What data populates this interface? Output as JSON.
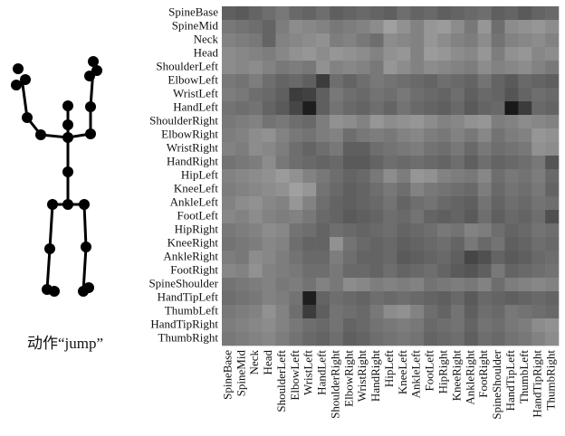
{
  "chart_data": {
    "type": "heatmap",
    "caption": "动作“jump”",
    "row_labels": [
      "SpineBase",
      "SpineMid",
      "Neck",
      "Head",
      "ShoulderLeft",
      "ElbowLeft",
      "WristLeft",
      "HandLeft",
      "ShoulderRight",
      "ElbowRight",
      "WristRight",
      "HandRight",
      "HipLeft",
      "KneeLeft",
      "AnkleLeft",
      "FootLeft",
      "HipRight",
      "KneeRight",
      "AnkleRight",
      "FootRight",
      "SpineShoulder",
      "HandTipLeft",
      "ThumbLeft",
      "HandTipRight",
      "ThumbRight"
    ],
    "column_labels": [
      "SpineBase",
      "SpineMid",
      "Neck",
      "Head",
      "ShoulderLeft",
      "ElbowLeft",
      "WristLeft",
      "HandLeft",
      "ShoulderRight",
      "ElbowRight",
      "WristRight",
      "HandRight",
      "HipLeft",
      "KneeLeft",
      "AnkleLeft",
      "FootLeft",
      "HipRight",
      "KneeRight",
      "AnkleRight",
      "FootRight",
      "SpineShoulder",
      "HandTipLeft",
      "ThumbLeft",
      "HandTipRight",
      "ThumbRight"
    ],
    "values": [
      [
        95,
        90,
        100,
        110,
        120,
        105,
        100,
        110,
        95,
        100,
        105,
        100,
        95,
        110,
        100,
        105,
        95,
        100,
        105,
        110,
        95,
        100,
        90,
        100,
        105
      ],
      [
        120,
        115,
        110,
        100,
        125,
        140,
        135,
        130,
        120,
        125,
        130,
        140,
        160,
        145,
        130,
        150,
        155,
        140,
        120,
        150,
        110,
        140,
        145,
        150,
        140
      ],
      [
        130,
        125,
        120,
        100,
        130,
        135,
        140,
        145,
        125,
        130,
        120,
        110,
        140,
        135,
        130,
        150,
        140,
        130,
        125,
        140,
        115,
        130,
        135,
        140,
        130
      ],
      [
        140,
        135,
        130,
        125,
        135,
        145,
        150,
        140,
        150,
        145,
        140,
        130,
        145,
        150,
        130,
        155,
        150,
        140,
        135,
        150,
        125,
        145,
        150,
        135,
        140
      ],
      [
        140,
        135,
        140,
        130,
        120,
        125,
        120,
        145,
        130,
        135,
        130,
        120,
        150,
        140,
        130,
        140,
        135,
        130,
        125,
        140,
        130,
        135,
        140,
        130,
        120
      ],
      [
        120,
        115,
        125,
        110,
        100,
        105,
        95,
        60,
        110,
        100,
        110,
        120,
        115,
        110,
        105,
        100,
        110,
        105,
        100,
        115,
        100,
        90,
        105,
        100,
        95
      ],
      [
        125,
        120,
        110,
        105,
        95,
        60,
        65,
        95,
        120,
        110,
        105,
        115,
        110,
        120,
        110,
        105,
        100,
        110,
        95,
        105,
        100,
        85,
        100,
        110,
        105
      ],
      [
        115,
        110,
        115,
        100,
        90,
        70,
        30,
        95,
        115,
        105,
        100,
        110,
        100,
        115,
        105,
        100,
        95,
        105,
        90,
        100,
        105,
        25,
        60,
        105,
        100
      ],
      [
        120,
        125,
        130,
        115,
        120,
        110,
        105,
        125,
        145,
        140,
        130,
        150,
        140,
        145,
        150,
        140,
        130,
        135,
        145,
        150,
        125,
        130,
        140,
        135,
        130
      ],
      [
        125,
        130,
        140,
        145,
        130,
        120,
        115,
        125,
        130,
        110,
        120,
        125,
        120,
        130,
        135,
        125,
        120,
        130,
        120,
        135,
        115,
        125,
        130,
        150,
        145
      ],
      [
        130,
        125,
        140,
        135,
        125,
        110,
        100,
        110,
        120,
        95,
        95,
        110,
        115,
        120,
        125,
        115,
        110,
        120,
        105,
        120,
        110,
        115,
        120,
        145,
        140
      ],
      [
        115,
        120,
        125,
        140,
        120,
        110,
        105,
        100,
        105,
        90,
        90,
        100,
        110,
        105,
        110,
        105,
        100,
        110,
        95,
        110,
        100,
        105,
        110,
        120,
        85
      ],
      [
        130,
        135,
        140,
        145,
        155,
        145,
        130,
        120,
        110,
        100,
        105,
        120,
        140,
        125,
        150,
        145,
        130,
        125,
        120,
        135,
        110,
        120,
        115,
        125,
        105
      ],
      [
        125,
        130,
        135,
        140,
        145,
        160,
        150,
        115,
        105,
        95,
        100,
        110,
        120,
        110,
        130,
        120,
        115,
        110,
        105,
        125,
        105,
        115,
        110,
        120,
        100
      ],
      [
        130,
        140,
        145,
        135,
        130,
        150,
        130,
        110,
        100,
        95,
        100,
        105,
        115,
        100,
        110,
        115,
        105,
        100,
        95,
        115,
        100,
        110,
        105,
        115,
        110
      ],
      [
        135,
        130,
        140,
        130,
        125,
        130,
        120,
        105,
        100,
        90,
        95,
        100,
        110,
        105,
        115,
        100,
        95,
        100,
        90,
        110,
        95,
        105,
        100,
        110,
        80
      ],
      [
        120,
        125,
        130,
        140,
        135,
        115,
        110,
        100,
        110,
        105,
        100,
        105,
        110,
        100,
        105,
        110,
        120,
        115,
        130,
        125,
        110,
        100,
        105,
        115,
        110
      ],
      [
        115,
        120,
        125,
        135,
        130,
        110,
        100,
        100,
        145,
        115,
        105,
        100,
        105,
        95,
        100,
        105,
        110,
        100,
        120,
        105,
        115,
        95,
        100,
        110,
        105
      ],
      [
        125,
        120,
        140,
        135,
        125,
        115,
        105,
        105,
        125,
        110,
        100,
        100,
        105,
        90,
        95,
        100,
        105,
        95,
        70,
        80,
        100,
        90,
        95,
        105,
        110
      ],
      [
        135,
        130,
        145,
        130,
        125,
        120,
        110,
        110,
        120,
        105,
        105,
        100,
        110,
        100,
        105,
        110,
        100,
        90,
        85,
        95,
        120,
        100,
        105,
        110,
        115
      ],
      [
        115,
        120,
        125,
        130,
        120,
        125,
        115,
        130,
        120,
        140,
        135,
        125,
        130,
        125,
        130,
        115,
        120,
        125,
        120,
        130,
        110,
        125,
        130,
        135,
        130
      ],
      [
        110,
        115,
        120,
        130,
        125,
        115,
        30,
        100,
        110,
        105,
        100,
        110,
        105,
        110,
        105,
        100,
        95,
        105,
        90,
        105,
        100,
        95,
        100,
        105,
        100
      ],
      [
        120,
        125,
        130,
        145,
        130,
        110,
        60,
        95,
        115,
        110,
        105,
        120,
        140,
        145,
        130,
        110,
        100,
        115,
        95,
        110,
        105,
        120,
        115,
        110,
        105
      ],
      [
        125,
        130,
        135,
        140,
        130,
        120,
        110,
        105,
        115,
        100,
        105,
        115,
        120,
        125,
        120,
        105,
        110,
        115,
        100,
        115,
        110,
        120,
        125,
        140,
        145
      ],
      [
        120,
        125,
        130,
        135,
        125,
        115,
        105,
        100,
        110,
        95,
        100,
        110,
        115,
        120,
        115,
        100,
        105,
        110,
        95,
        110,
        105,
        115,
        120,
        130,
        140
      ]
    ]
  }
}
